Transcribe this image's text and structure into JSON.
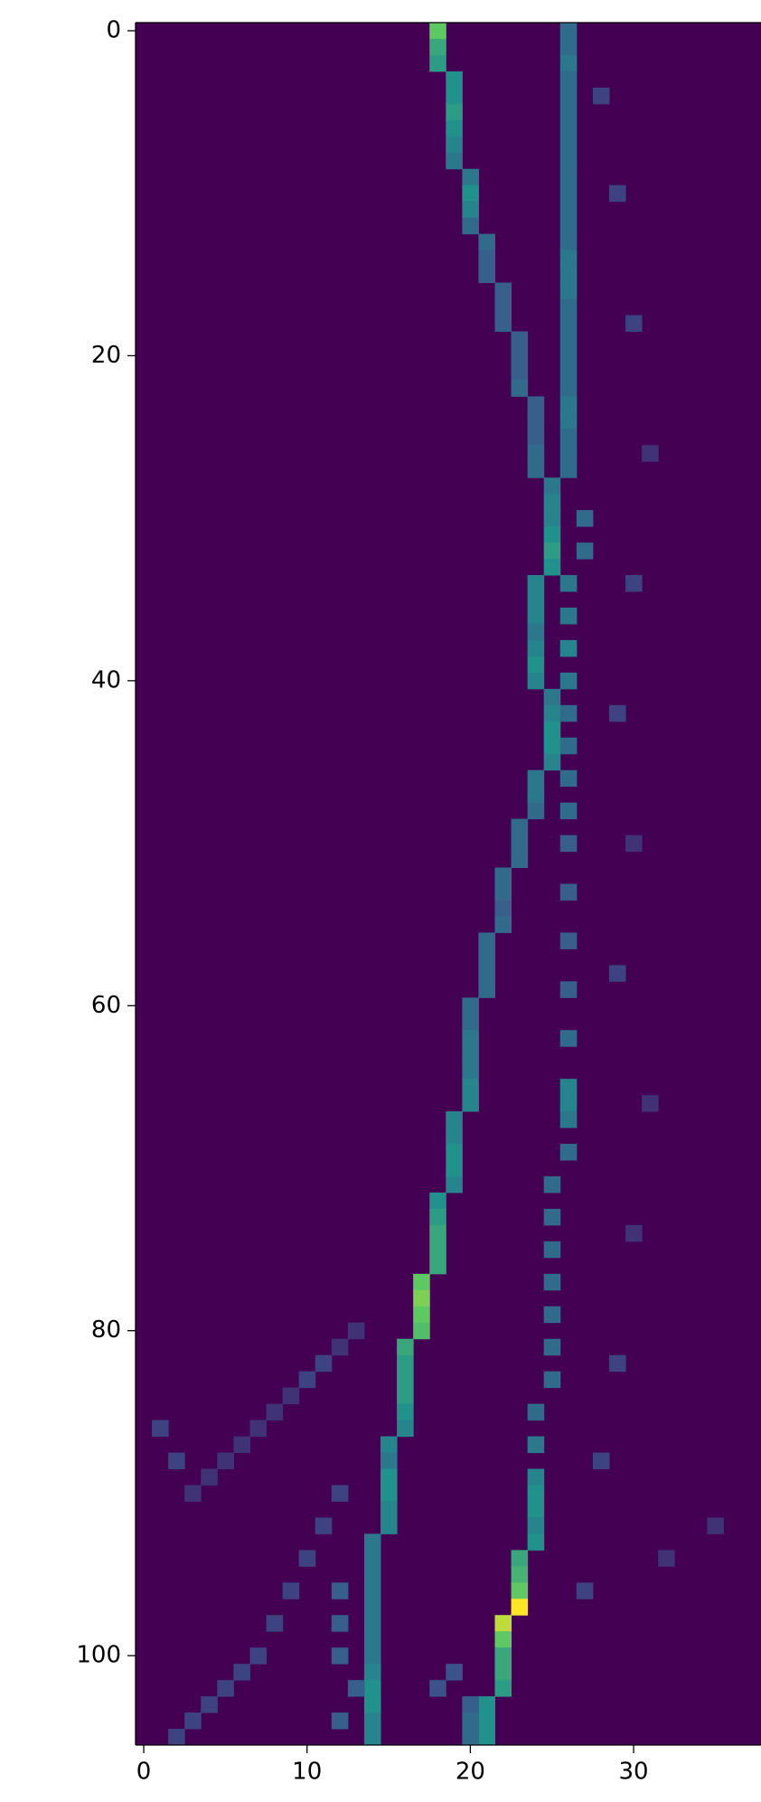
{
  "chart_data": {
    "type": "heatmap",
    "xlim": [
      -0.5,
      37.8
    ],
    "ylim": [
      105.5,
      -0.5
    ],
    "xticks": [
      0,
      10,
      20,
      30
    ],
    "yticks": [
      0,
      20,
      40,
      60,
      80,
      100
    ],
    "vlim": [
      0,
      1
    ],
    "colormap": [
      "#440154",
      "#3b528b",
      "#21918c",
      "#5ec962",
      "#fde725"
    ],
    "cells": [
      [
        18,
        0,
        0.75
      ],
      [
        18,
        1,
        0.6
      ],
      [
        18,
        2,
        0.55
      ],
      [
        19,
        3,
        0.5
      ],
      [
        19,
        4,
        0.5
      ],
      [
        19,
        5,
        0.55
      ],
      [
        19,
        6,
        0.5
      ],
      [
        19,
        7,
        0.45
      ],
      [
        19,
        8,
        0.4
      ],
      [
        20,
        9,
        0.4
      ],
      [
        20,
        10,
        0.5
      ],
      [
        20,
        11,
        0.45
      ],
      [
        20,
        12,
        0.35
      ],
      [
        21,
        13,
        0.35
      ],
      [
        21,
        14,
        0.3
      ],
      [
        21,
        15,
        0.3
      ],
      [
        22,
        16,
        0.3
      ],
      [
        22,
        17,
        0.3
      ],
      [
        22,
        18,
        0.3
      ],
      [
        23,
        19,
        0.3
      ],
      [
        23,
        20,
        0.3
      ],
      [
        23,
        21,
        0.3
      ],
      [
        23,
        22,
        0.35
      ],
      [
        24,
        23,
        0.3
      ],
      [
        24,
        24,
        0.3
      ],
      [
        24,
        25,
        0.3
      ],
      [
        24,
        26,
        0.35
      ],
      [
        24,
        27,
        0.35
      ],
      [
        25,
        28,
        0.4
      ],
      [
        25,
        29,
        0.45
      ],
      [
        25,
        30,
        0.45
      ],
      [
        25,
        31,
        0.5
      ],
      [
        25,
        32,
        0.55
      ],
      [
        25,
        33,
        0.5
      ],
      [
        24,
        34,
        0.45
      ],
      [
        24,
        35,
        0.45
      ],
      [
        24,
        36,
        0.45
      ],
      [
        24,
        37,
        0.4
      ],
      [
        24,
        38,
        0.45
      ],
      [
        24,
        39,
        0.5
      ],
      [
        24,
        40,
        0.45
      ],
      [
        25,
        41,
        0.4
      ],
      [
        25,
        42,
        0.45
      ],
      [
        25,
        43,
        0.5
      ],
      [
        25,
        44,
        0.5
      ],
      [
        25,
        45,
        0.45
      ],
      [
        24,
        46,
        0.4
      ],
      [
        24,
        47,
        0.4
      ],
      [
        24,
        48,
        0.35
      ],
      [
        23,
        49,
        0.35
      ],
      [
        23,
        50,
        0.35
      ],
      [
        23,
        51,
        0.35
      ],
      [
        22,
        52,
        0.35
      ],
      [
        22,
        53,
        0.35
      ],
      [
        22,
        54,
        0.3
      ],
      [
        22,
        55,
        0.35
      ],
      [
        21,
        56,
        0.35
      ],
      [
        21,
        57,
        0.35
      ],
      [
        21,
        58,
        0.35
      ],
      [
        21,
        59,
        0.35
      ],
      [
        20,
        60,
        0.35
      ],
      [
        20,
        61,
        0.35
      ],
      [
        20,
        62,
        0.4
      ],
      [
        20,
        63,
        0.4
      ],
      [
        20,
        64,
        0.4
      ],
      [
        20,
        65,
        0.45
      ],
      [
        20,
        66,
        0.45
      ],
      [
        19,
        67,
        0.45
      ],
      [
        19,
        68,
        0.45
      ],
      [
        19,
        69,
        0.5
      ],
      [
        19,
        70,
        0.5
      ],
      [
        19,
        71,
        0.45
      ],
      [
        18,
        72,
        0.5
      ],
      [
        18,
        73,
        0.55
      ],
      [
        18,
        74,
        0.6
      ],
      [
        18,
        75,
        0.6
      ],
      [
        18,
        76,
        0.6
      ],
      [
        17,
        77,
        0.75
      ],
      [
        17,
        78,
        0.8
      ],
      [
        17,
        79,
        0.75
      ],
      [
        17,
        80,
        0.7
      ],
      [
        16,
        81,
        0.6
      ],
      [
        16,
        82,
        0.55
      ],
      [
        16,
        83,
        0.55
      ],
      [
        16,
        84,
        0.55
      ],
      [
        16,
        85,
        0.5
      ],
      [
        16,
        86,
        0.45
      ],
      [
        15,
        87,
        0.45
      ],
      [
        15,
        88,
        0.4
      ],
      [
        15,
        89,
        0.5
      ],
      [
        15,
        90,
        0.5
      ],
      [
        15,
        91,
        0.45
      ],
      [
        15,
        92,
        0.45
      ],
      [
        14,
        93,
        0.4
      ],
      [
        14,
        94,
        0.4
      ],
      [
        14,
        95,
        0.4
      ],
      [
        14,
        96,
        0.4
      ],
      [
        14,
        97,
        0.4
      ],
      [
        14,
        98,
        0.4
      ],
      [
        14,
        99,
        0.4
      ],
      [
        14,
        100,
        0.4
      ],
      [
        14,
        101,
        0.45
      ],
      [
        14,
        102,
        0.5
      ],
      [
        14,
        103,
        0.5
      ],
      [
        14,
        104,
        0.45
      ],
      [
        14,
        105,
        0.45
      ],
      [
        26,
        0,
        0.35
      ],
      [
        26,
        1,
        0.35
      ],
      [
        26,
        2,
        0.4
      ],
      [
        26,
        3,
        0.35
      ],
      [
        26,
        4,
        0.35
      ],
      [
        26,
        5,
        0.35
      ],
      [
        26,
        6,
        0.35
      ],
      [
        26,
        7,
        0.35
      ],
      [
        26,
        8,
        0.35
      ],
      [
        26,
        9,
        0.35
      ],
      [
        26,
        10,
        0.35
      ],
      [
        26,
        11,
        0.35
      ],
      [
        26,
        12,
        0.35
      ],
      [
        26,
        13,
        0.35
      ],
      [
        26,
        14,
        0.4
      ],
      [
        26,
        15,
        0.4
      ],
      [
        26,
        16,
        0.4
      ],
      [
        26,
        17,
        0.35
      ],
      [
        26,
        18,
        0.35
      ],
      [
        26,
        19,
        0.35
      ],
      [
        26,
        20,
        0.35
      ],
      [
        26,
        21,
        0.35
      ],
      [
        26,
        22,
        0.35
      ],
      [
        26,
        23,
        0.4
      ],
      [
        26,
        24,
        0.4
      ],
      [
        26,
        25,
        0.35
      ],
      [
        26,
        26,
        0.35
      ],
      [
        26,
        27,
        0.35
      ],
      [
        27,
        30,
        0.35
      ],
      [
        27,
        32,
        0.35
      ],
      [
        26,
        34,
        0.4
      ],
      [
        26,
        36,
        0.4
      ],
      [
        26,
        38,
        0.45
      ],
      [
        26,
        40,
        0.4
      ],
      [
        26,
        42,
        0.35
      ],
      [
        26,
        44,
        0.35
      ],
      [
        26,
        46,
        0.35
      ],
      [
        26,
        48,
        0.35
      ],
      [
        26,
        50,
        0.3
      ],
      [
        26,
        53,
        0.3
      ],
      [
        26,
        56,
        0.3
      ],
      [
        26,
        59,
        0.3
      ],
      [
        26,
        62,
        0.35
      ],
      [
        26,
        65,
        0.45
      ],
      [
        26,
        66,
        0.45
      ],
      [
        26,
        67,
        0.4
      ],
      [
        26,
        69,
        0.35
      ],
      [
        25,
        71,
        0.35
      ],
      [
        25,
        73,
        0.35
      ],
      [
        25,
        75,
        0.35
      ],
      [
        25,
        77,
        0.35
      ],
      [
        25,
        79,
        0.35
      ],
      [
        25,
        81,
        0.35
      ],
      [
        25,
        83,
        0.35
      ],
      [
        24,
        85,
        0.35
      ],
      [
        24,
        87,
        0.4
      ],
      [
        24,
        89,
        0.45
      ],
      [
        24,
        90,
        0.5
      ],
      [
        24,
        91,
        0.5
      ],
      [
        24,
        92,
        0.45
      ],
      [
        24,
        93,
        0.5
      ],
      [
        23,
        94,
        0.6
      ],
      [
        23,
        95,
        0.65
      ],
      [
        23,
        96,
        0.75
      ],
      [
        23,
        97,
        1.0
      ],
      [
        22,
        98,
        0.9
      ],
      [
        22,
        99,
        0.75
      ],
      [
        22,
        100,
        0.6
      ],
      [
        22,
        101,
        0.6
      ],
      [
        22,
        102,
        0.55
      ],
      [
        21,
        103,
        0.5
      ],
      [
        21,
        104,
        0.5
      ],
      [
        21,
        105,
        0.5
      ],
      [
        13,
        80,
        0.15
      ],
      [
        12,
        81,
        0.15
      ],
      [
        11,
        82,
        0.2
      ],
      [
        10,
        83,
        0.2
      ],
      [
        9,
        84,
        0.15
      ],
      [
        8,
        85,
        0.15
      ],
      [
        7,
        86,
        0.15
      ],
      [
        6,
        87,
        0.15
      ],
      [
        5,
        88,
        0.15
      ],
      [
        4,
        89,
        0.15
      ],
      [
        3,
        90,
        0.15
      ],
      [
        1,
        86,
        0.2
      ],
      [
        2,
        88,
        0.2
      ],
      [
        12,
        90,
        0.2
      ],
      [
        11,
        92,
        0.2
      ],
      [
        10,
        94,
        0.2
      ],
      [
        9,
        96,
        0.2
      ],
      [
        8,
        98,
        0.2
      ],
      [
        7,
        100,
        0.2
      ],
      [
        6,
        101,
        0.2
      ],
      [
        5,
        102,
        0.2
      ],
      [
        4,
        103,
        0.2
      ],
      [
        3,
        104,
        0.2
      ],
      [
        2,
        105,
        0.2
      ],
      [
        12,
        96,
        0.3
      ],
      [
        12,
        98,
        0.3
      ],
      [
        12,
        100,
        0.3
      ],
      [
        13,
        102,
        0.3
      ],
      [
        12,
        104,
        0.3
      ],
      [
        20,
        103,
        0.3
      ],
      [
        20,
        104,
        0.35
      ],
      [
        20,
        105,
        0.35
      ],
      [
        19,
        101,
        0.25
      ],
      [
        18,
        102,
        0.25
      ],
      [
        28,
        4,
        0.2
      ],
      [
        29,
        10,
        0.2
      ],
      [
        30,
        18,
        0.2
      ],
      [
        31,
        26,
        0.15
      ],
      [
        30,
        34,
        0.2
      ],
      [
        29,
        42,
        0.2
      ],
      [
        30,
        50,
        0.15
      ],
      [
        29,
        58,
        0.2
      ],
      [
        31,
        66,
        0.15
      ],
      [
        30,
        74,
        0.15
      ],
      [
        29,
        82,
        0.2
      ],
      [
        28,
        88,
        0.2
      ],
      [
        27,
        96,
        0.2
      ],
      [
        32,
        94,
        0.15
      ],
      [
        35,
        92,
        0.15
      ]
    ]
  }
}
